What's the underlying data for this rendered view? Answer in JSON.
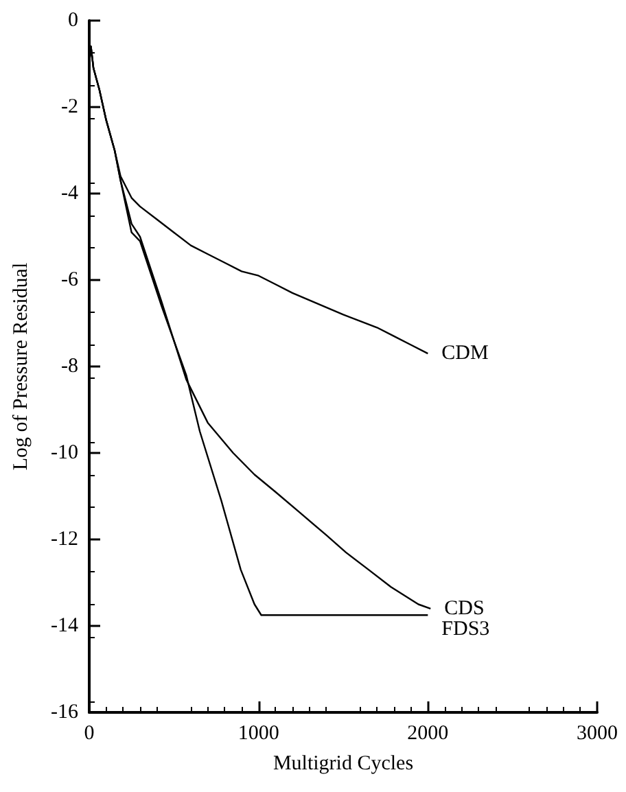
{
  "chart_data": {
    "type": "line",
    "xlabel": "Multigrid Cycles",
    "ylabel": "Log of Pressure Residual",
    "xlim": [
      0,
      3000
    ],
    "xticks": [
      0,
      1000,
      2000,
      3000
    ],
    "ylim": [
      -16,
      0
    ],
    "yticks": [
      -16,
      -14,
      -12,
      -10,
      -8,
      -6,
      -4,
      -2,
      0
    ],
    "grid": false,
    "legend": false,
    "marker": "none",
    "line_style": "solid",
    "series": [
      {
        "name": "CDM",
        "color": "#000000",
        "x": [
          0,
          10,
          25,
          60,
          100,
          150,
          185,
          250,
          300,
          400,
          500,
          600,
          700,
          800,
          900,
          1000,
          1100,
          1200,
          1350,
          1500,
          1600,
          1700,
          1800,
          1900,
          2000
        ],
        "values": [
          -1.0,
          -0.6,
          -1.1,
          -1.6,
          -2.3,
          -3.0,
          -3.6,
          -4.1,
          -4.3,
          -4.6,
          -4.9,
          -5.2,
          -5.4,
          -5.6,
          -5.8,
          -5.9,
          -6.1,
          -6.3,
          -6.55,
          -6.8,
          -6.95,
          -7.1,
          -7.3,
          -7.5,
          -7.7
        ]
      },
      {
        "name": "CDS",
        "color": "#000000",
        "x": [
          0,
          10,
          25,
          60,
          100,
          150,
          185,
          250,
          300,
          427,
          573,
          700,
          850,
          976,
          1100,
          1250,
          1400,
          1516,
          1650,
          1782,
          1944,
          2016
        ],
        "values": [
          -1.0,
          -0.6,
          -1.1,
          -1.6,
          -2.3,
          -3.0,
          -3.7,
          -4.7,
          -5.0,
          -6.5,
          -8.3,
          -9.3,
          -10.0,
          -10.5,
          -10.9,
          -11.4,
          -11.9,
          -12.3,
          -12.7,
          -13.1,
          -13.5,
          -13.6
        ]
      },
      {
        "name": "FDS3",
        "color": "#000000",
        "x": [
          0,
          10,
          25,
          60,
          100,
          150,
          185,
          250,
          300,
          427,
          573,
          653,
          780,
          895,
          976,
          1016,
          1200,
          1400,
          1600,
          1800,
          2000
        ],
        "values": [
          -1.0,
          -0.6,
          -1.1,
          -1.6,
          -2.3,
          -3.0,
          -3.7,
          -4.9,
          -5.1,
          -6.6,
          -8.2,
          -9.5,
          -11.1,
          -12.7,
          -13.5,
          -13.75,
          -13.75,
          -13.75,
          -13.75,
          -13.75,
          -13.75
        ]
      }
    ]
  }
}
